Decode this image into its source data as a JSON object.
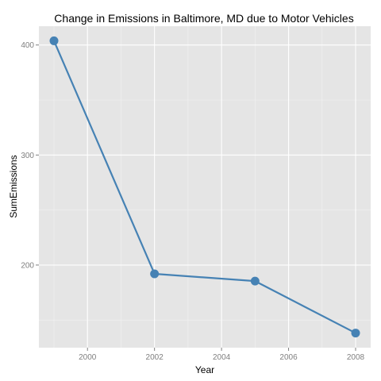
{
  "chart_data": {
    "type": "line",
    "title": "Change in Emissions in Baltimore, MD due to Motor Vehicles",
    "xlabel": "Year",
    "ylabel": "SumEmissions",
    "x": [
      1999,
      2002,
      2005,
      2008
    ],
    "series": [
      {
        "values": [
          403.8,
          192.0,
          185.4,
          138.2
        ]
      }
    ],
    "xticks": [
      2000,
      2002,
      2004,
      2006,
      2008
    ],
    "yticks": [
      200,
      300,
      400
    ],
    "xlim": [
      1998.55,
      2008.45
    ],
    "ylim": [
      124.9,
      417.1
    ],
    "grid": true,
    "colors": {
      "panel": "#e5e5e5",
      "grid_major": "#ffffff",
      "grid_minor": "#f2f2f2",
      "line": "#4682b4",
      "tick_text": "#7f7f7f"
    }
  }
}
